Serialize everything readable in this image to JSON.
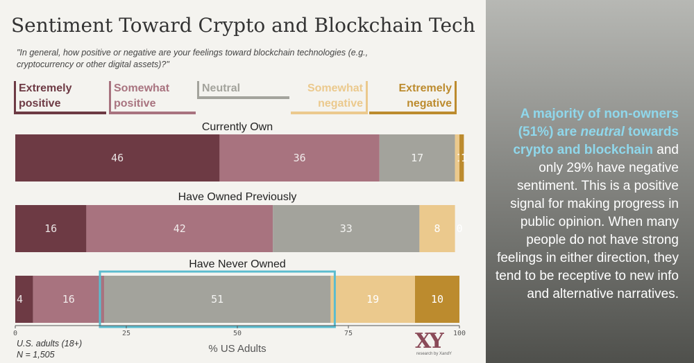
{
  "title": "Sentiment Toward Crypto and Blockchain Tech",
  "question": "\"In general, how positive or negative are your feelings toward blockchain technologies (e.g., cryptocurrency or other digital assets)?\"",
  "legend": [
    {
      "line1": "Extremely",
      "line2": "positive",
      "color": "#6d3a44"
    },
    {
      "line1": "Somewhat",
      "line2": "positive",
      "color": "#a8737f"
    },
    {
      "line1": "",
      "line2": "Neutral",
      "color": "#a3a39c"
    },
    {
      "line1": "Somewhat",
      "line2": "negative",
      "color": "#ebc98d"
    },
    {
      "line1": "Extremely",
      "line2": "negative",
      "color": "#bc8b2e"
    }
  ],
  "chart_data": {
    "type": "bar",
    "orientation": "horizontal",
    "stacked": true,
    "xlabel": "% US Adults",
    "xlim": [
      0,
      100
    ],
    "xticks": [
      0,
      25,
      50,
      75,
      100
    ],
    "categories": [
      "Currently Own",
      "Have Owned Previously",
      "Have Never Owned"
    ],
    "series": [
      {
        "name": "Extremely positive",
        "values": [
          46,
          16,
          4
        ]
      },
      {
        "name": "Somewhat positive",
        "values": [
          36,
          42,
          16
        ]
      },
      {
        "name": "Neutral",
        "values": [
          17,
          33,
          51
        ]
      },
      {
        "name": "Somewhat negative",
        "values": [
          1,
          8,
          19
        ]
      },
      {
        "name": "Extremely negative",
        "values": [
          1,
          0,
          10
        ]
      }
    ],
    "highlight": {
      "category": "Have Never Owned",
      "series": "Neutral",
      "color": "#5bbccf"
    }
  },
  "callout": {
    "highlight": "A majority of non-owners (51%) are",
    "highlight_em": "neutral",
    "highlight_end": "towards crypto and blockchain",
    "body": "and only 29% have negative sentiment. This is a positive signal for making progress in public opinion. When many people do not have strong feelings in either direction, they tend to be receptive to new info and alternative narratives."
  },
  "footnote": {
    "line1": "U.S. adults (18+)",
    "line2": "N = 1,505"
  },
  "logo": {
    "mark": "XY",
    "sub": "research by XandY"
  }
}
